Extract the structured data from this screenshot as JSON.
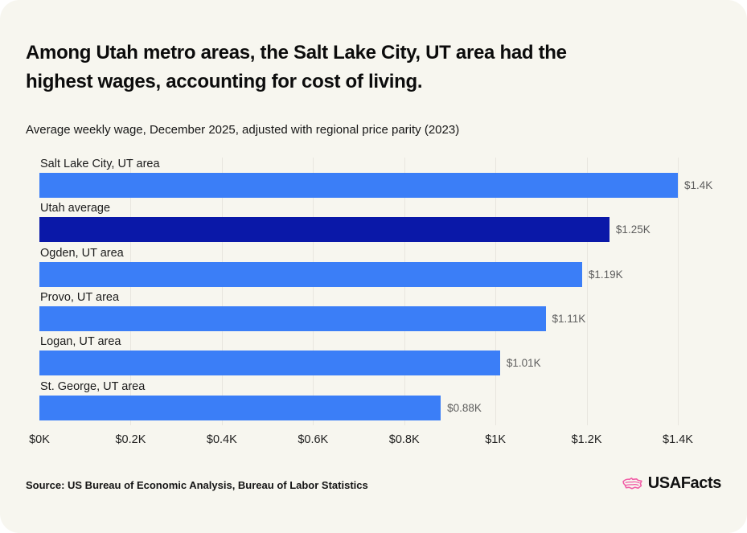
{
  "card": {
    "title_line1": "Among Utah metro areas, the Salt Lake City, UT area had the",
    "title_line2": "highest wages, accounting for cost of living.",
    "subtitle": "Average weekly wage, December 2025, adjusted with regional price parity (2023)",
    "source": "Source: US Bureau of Economic Analysis, Bureau of Labor Statistics",
    "brand": "USAFacts"
  },
  "colors": {
    "background": "#F7F6EF",
    "bar": "#3B7EF7",
    "highlight_bar": "#0A18A8",
    "gridline": "#E8E6DF",
    "value_label": "#5E5E5E",
    "brand_pink": "#F15BA5"
  },
  "chart_data": {
    "type": "bar",
    "orientation": "horizontal",
    "title": "Among Utah metro areas, the Salt Lake City, UT area had the highest wages, accounting for cost of living.",
    "subtitle": "Average weekly wage, December 2025, adjusted with regional price parity (2023)",
    "categories": [
      "Salt Lake City, UT area",
      "Utah average",
      "Ogden, UT area",
      "Provo, UT area",
      "Logan, UT area",
      "St. George, UT area"
    ],
    "values": [
      1400,
      1250,
      1190,
      1110,
      1010,
      880
    ],
    "value_labels": [
      "$1.4K",
      "$1.25K",
      "$1.19K",
      "$1.11K",
      "$1.01K",
      "$0.88K"
    ],
    "highlight_index": 1,
    "xlim": [
      0,
      1400
    ],
    "x_tick_values": [
      0,
      200,
      400,
      600,
      800,
      1000,
      1200,
      1400
    ],
    "x_tick_labels": [
      "$0K",
      "$0.2K",
      "$0.4K",
      "$0.6K",
      "$0.8K",
      "$1K",
      "$1.2K",
      "$1.4K"
    ],
    "grid": true,
    "legend": "none"
  }
}
